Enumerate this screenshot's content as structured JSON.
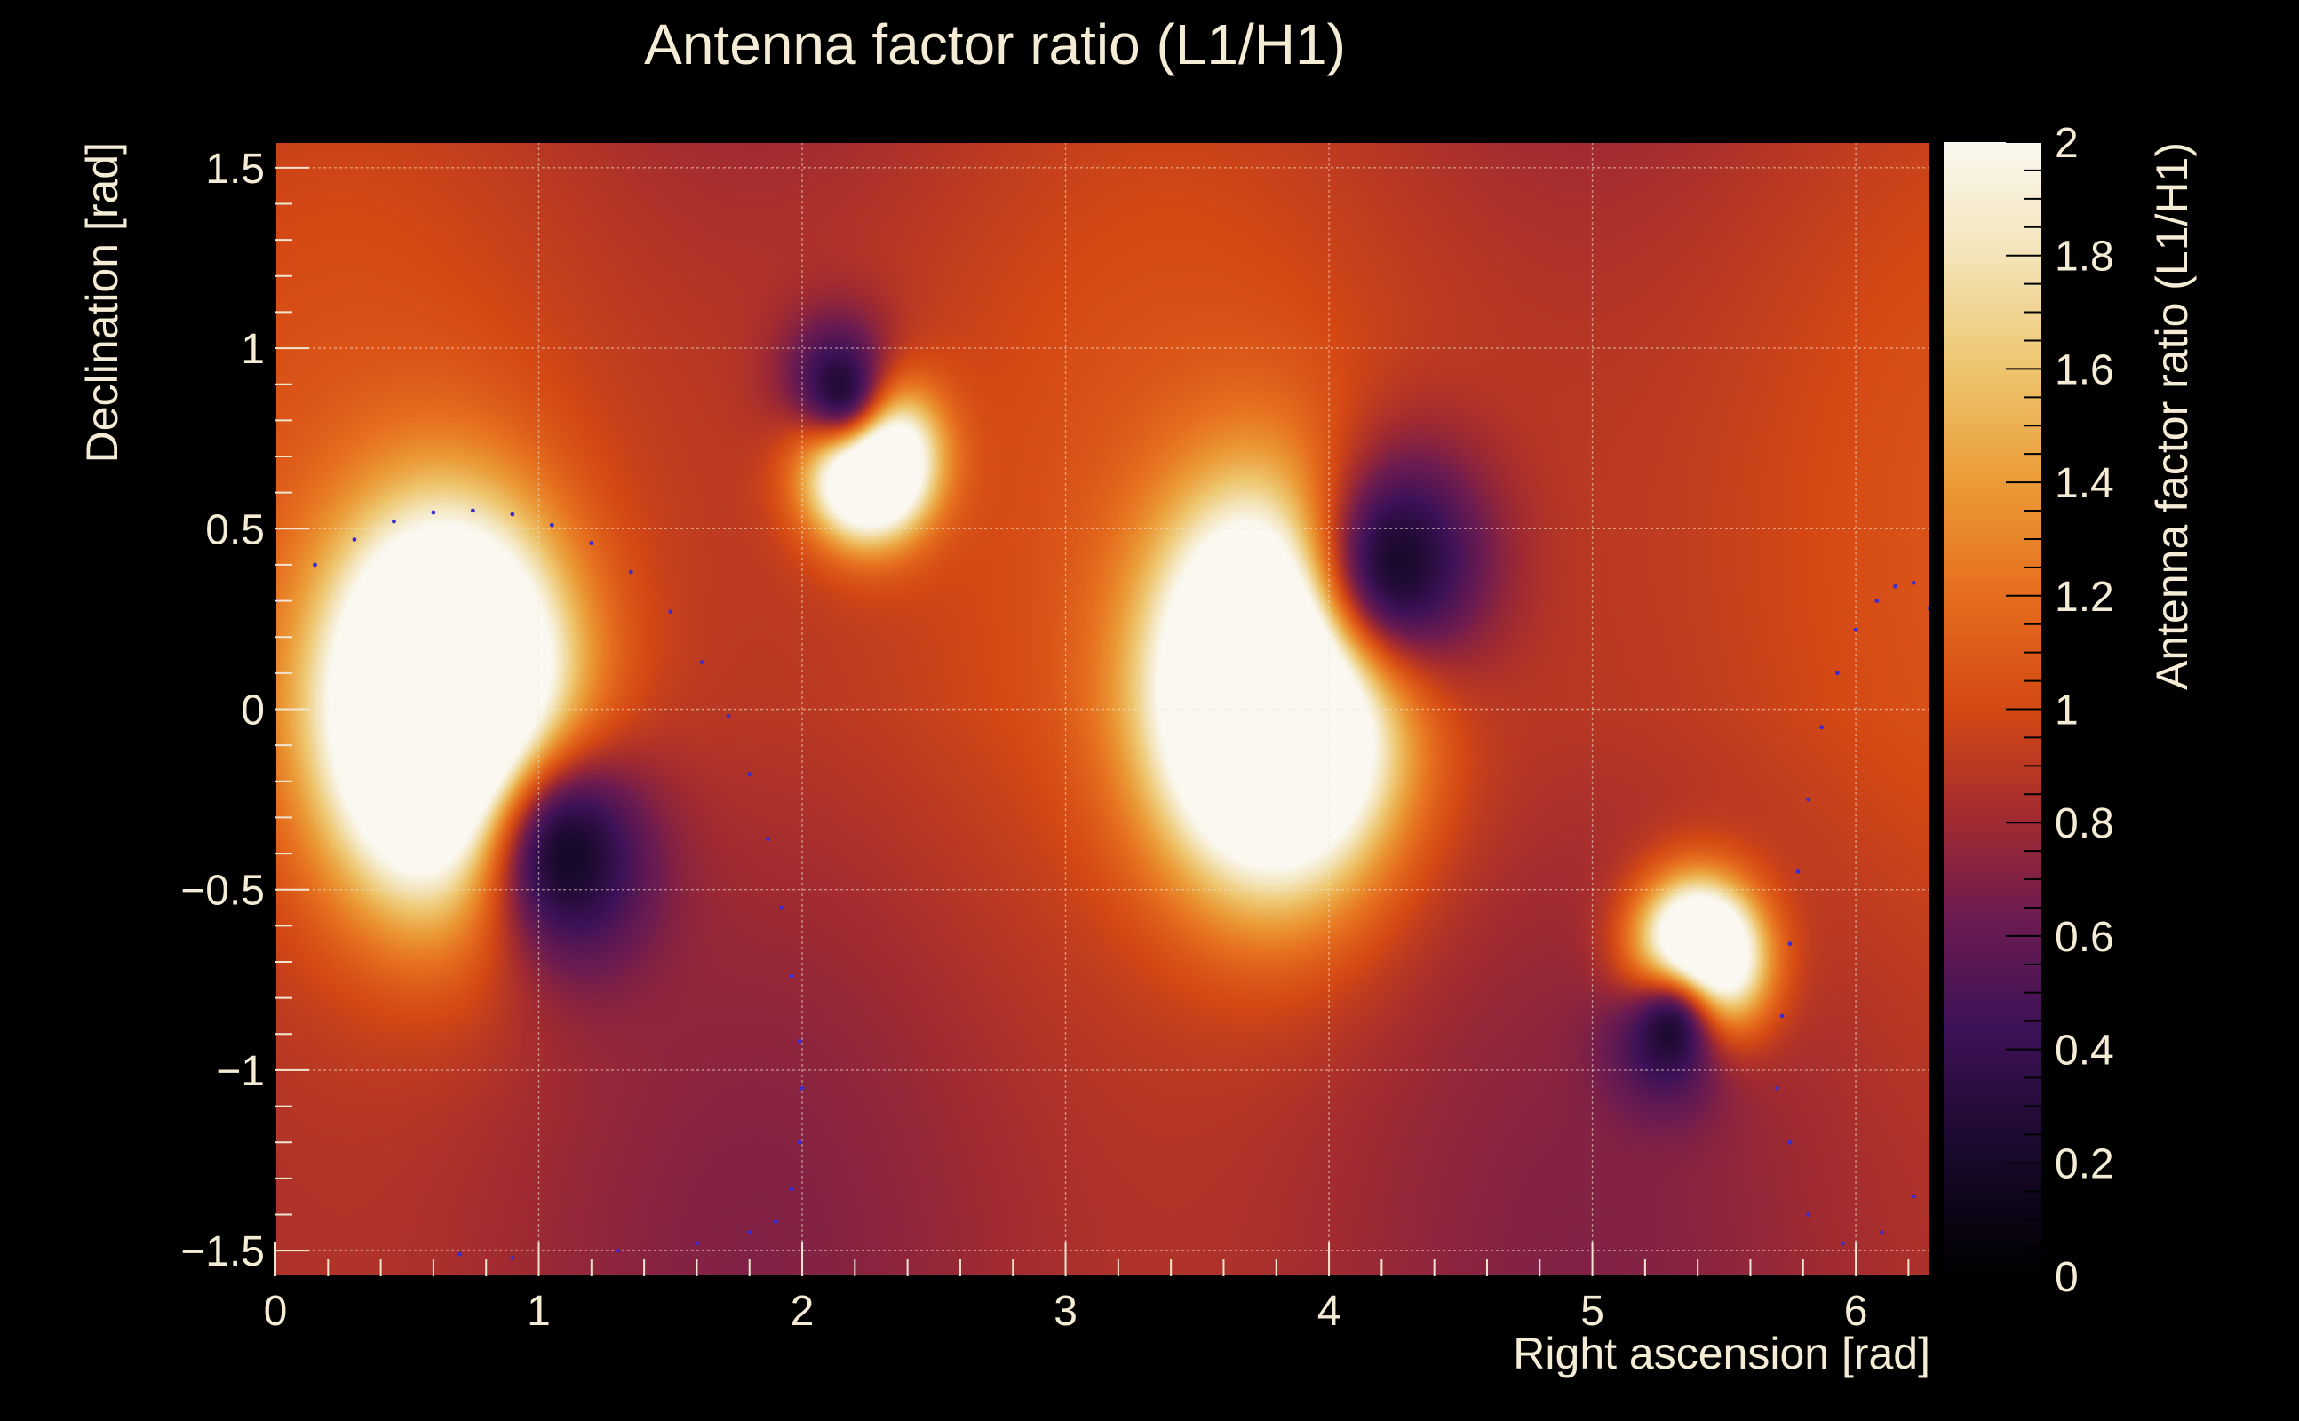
{
  "chart_data": {
    "type": "heatmap",
    "title": "Antenna factor ratio (L1/H1)",
    "xlabel": "Right ascension [rad]",
    "ylabel": "Declination [rad]",
    "zlabel": "Antenna factor ratio (L1/H1)",
    "xlim": [
      0,
      6.283
    ],
    "ylim": [
      -1.571,
      1.571
    ],
    "zlim": [
      0,
      2
    ],
    "x_ticks": [
      0,
      1,
      2,
      3,
      4,
      5,
      6
    ],
    "y_ticks": [
      -1.5,
      -1,
      -0.5,
      0,
      0.5,
      1,
      1.5
    ],
    "z_ticks": [
      0,
      0.2,
      0.4,
      0.6,
      0.8,
      1,
      1.2,
      1.4,
      1.6,
      1.8,
      2
    ],
    "x_tick_labels": [
      "0",
      "1",
      "2",
      "3",
      "4",
      "5",
      "6"
    ],
    "y_tick_labels": [
      "−1.5",
      "−1",
      "−0.5",
      "0",
      "0.5",
      "1",
      "1.5"
    ],
    "z_tick_labels": [
      "0",
      "0.2",
      "0.4",
      "0.6",
      "0.8",
      "1",
      "1.2",
      "1.4",
      "1.6",
      "1.8",
      "2"
    ],
    "grid": true,
    "colormap": "inferno-like (black → purple → red → orange → cream)",
    "features": {
      "maxima": [
        {
          "x": 0.65,
          "y": 0.0
        },
        {
          "x": 2.25,
          "y": 0.7
        },
        {
          "x": 3.8,
          "y": 0.05
        },
        {
          "x": 5.4,
          "y": -0.7
        }
      ],
      "minima": [
        {
          "x": 1.1,
          "y": -0.4
        },
        {
          "x": 2.15,
          "y": 0.88
        },
        {
          "x": 4.25,
          "y": 0.4
        },
        {
          "x": 5.3,
          "y": -0.88
        }
      ]
    },
    "dotted_curve": {
      "color": "#3a2ccf",
      "x": [
        0.0,
        0.15,
        0.3,
        0.45,
        0.6,
        0.75,
        0.9,
        1.05,
        1.2,
        1.35,
        1.5,
        1.62,
        1.72,
        1.8,
        1.87,
        1.92,
        1.96,
        1.99,
        2.0,
        1.99,
        1.96,
        1.9,
        1.8,
        1.6,
        1.3,
        0.9,
        0.7,
        5.7,
        5.72,
        5.75,
        5.78,
        5.82,
        5.87,
        5.93,
        6.0,
        6.08,
        6.15,
        6.22,
        6.28,
        6.22,
        6.1,
        5.95,
        5.82,
        5.75
      ],
      "y": [
        0.3,
        0.4,
        0.47,
        0.52,
        0.545,
        0.55,
        0.54,
        0.51,
        0.46,
        0.38,
        0.27,
        0.13,
        -0.02,
        -0.18,
        -0.36,
        -0.55,
        -0.74,
        -0.92,
        -1.05,
        -1.2,
        -1.33,
        -1.42,
        -1.45,
        -1.48,
        -1.5,
        -1.52,
        -1.51,
        -1.05,
        -0.85,
        -0.65,
        -0.45,
        -0.25,
        -0.05,
        0.1,
        0.22,
        0.3,
        0.34,
        0.35,
        0.28,
        -1.35,
        -1.45,
        -1.48,
        -1.4,
        -1.2
      ]
    }
  }
}
